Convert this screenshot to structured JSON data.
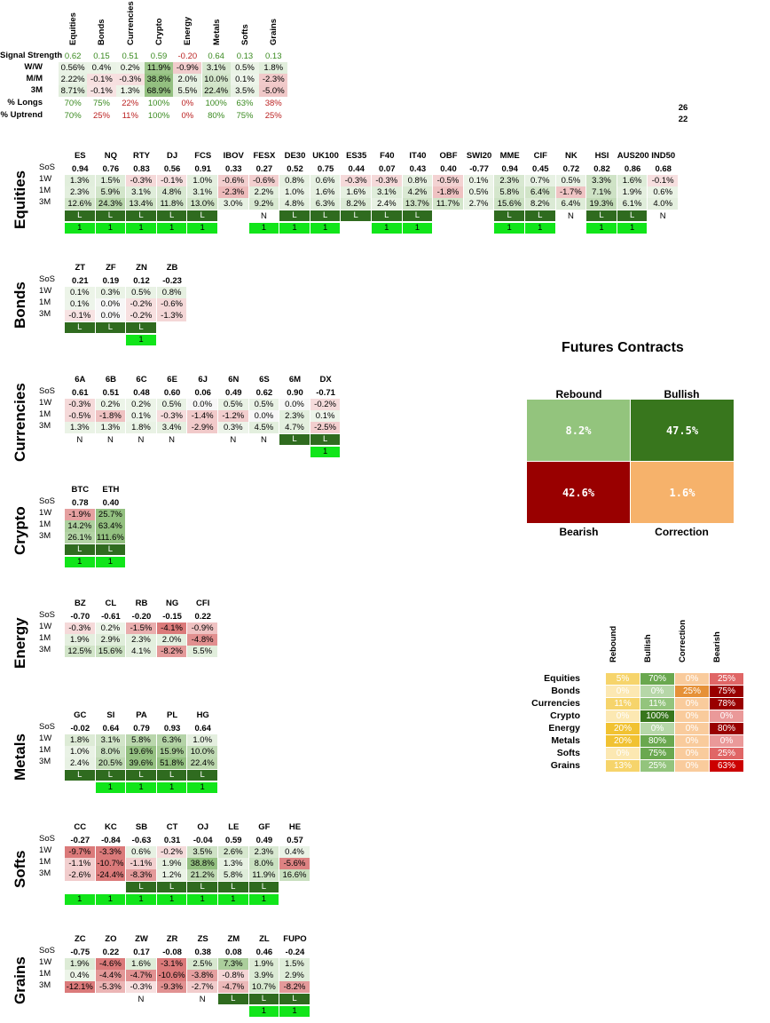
{
  "summary": {
    "columns": [
      "Equities",
      "Bonds",
      "Currencies",
      "Crypto",
      "Energy",
      "Metals",
      "Softs",
      "Grains"
    ],
    "rows": [
      {
        "label": "Signal Strength",
        "values": [
          "0.62",
          "0.15",
          "0.51",
          "0.59",
          "-0.20",
          "0.64",
          "0.13",
          "0.13"
        ]
      },
      {
        "label": "W/W",
        "values": [
          "0.56%",
          "0.4%",
          "0.2%",
          "11.9%",
          "-0.9%",
          "3.1%",
          "0.5%",
          "1.8%"
        ]
      },
      {
        "label": "M/M",
        "values": [
          "2.22%",
          "-0.1%",
          "-0.3%",
          "38.8%",
          "2.0%",
          "10.0%",
          "0.1%",
          "-2.3%"
        ]
      },
      {
        "label": "3M",
        "values": [
          "8.71%",
          "-0.1%",
          "1.3%",
          "68.9%",
          "5.5%",
          "22.4%",
          "3.5%",
          "-5.0%"
        ]
      },
      {
        "label": "% Longs",
        "values": [
          "70%",
          "75%",
          "22%",
          "100%",
          "0%",
          "100%",
          "63%",
          "38%"
        ]
      },
      {
        "label": "% Uptrend",
        "values": [
          "70%",
          "25%",
          "11%",
          "100%",
          "0%",
          "80%",
          "75%",
          "25%"
        ]
      }
    ],
    "side_numbers": [
      "26",
      "22"
    ]
  },
  "sections": [
    {
      "name": "Equities",
      "tickers": [
        "ES",
        "NQ",
        "RTY",
        "DJ",
        "FCS",
        "IBOV",
        "FESX",
        "DE30",
        "UK100",
        "ES35",
        "F40",
        "IT40",
        "OBF",
        "SWI20",
        "MME",
        "CIF",
        "NK",
        "HSI",
        "AUS200",
        "IND50"
      ],
      "sos": [
        "0.94",
        "0.76",
        "0.83",
        "0.56",
        "0.91",
        "0.33",
        "0.27",
        "0.52",
        "0.75",
        "0.44",
        "0.07",
        "0.43",
        "0.40",
        "-0.77",
        "0.94",
        "0.45",
        "0.72",
        "0.82",
        "0.86",
        "0.68"
      ],
      "w1": [
        "1.3%",
        "1.5%",
        "-0.3%",
        "-0.1%",
        "1.0%",
        "-0.6%",
        "-0.6%",
        "0.8%",
        "0.6%",
        "-0.3%",
        "-0.3%",
        "0.8%",
        "-0.5%",
        "0.1%",
        "2.3%",
        "0.7%",
        "0.5%",
        "3.3%",
        "1.6%",
        "-0.1%"
      ],
      "m1": [
        "2.3%",
        "5.9%",
        "3.1%",
        "4.8%",
        "3.1%",
        "-2.3%",
        "2.2%",
        "1.0%",
        "1.6%",
        "1.6%",
        "3.1%",
        "4.2%",
        "-1.8%",
        "0.5%",
        "5.8%",
        "6.4%",
        "-1.7%",
        "7.1%",
        "1.9%",
        "0.6%"
      ],
      "m3": [
        "12.6%",
        "24.3%",
        "13.4%",
        "11.8%",
        "13.0%",
        "3.0%",
        "9.2%",
        "4.8%",
        "6.3%",
        "8.2%",
        "2.4%",
        "13.7%",
        "11.7%",
        "2.7%",
        "15.6%",
        "8.2%",
        "6.4%",
        "19.3%",
        "6.1%",
        "4.0%"
      ],
      "ln": [
        "L",
        "L",
        "L",
        "L",
        "L",
        "",
        "N",
        "L",
        "L",
        "L",
        "L",
        "L",
        "",
        "",
        "L",
        "L",
        "N",
        "L",
        "L",
        "N"
      ],
      "one": [
        "1",
        "1",
        "1",
        "1",
        "1",
        "",
        "1",
        "1",
        "1",
        "",
        "1",
        "1",
        "",
        "",
        "1",
        "1",
        "",
        "1",
        "1",
        ""
      ]
    },
    {
      "name": "Bonds",
      "tickers": [
        "ZT",
        "ZF",
        "ZN",
        "ZB"
      ],
      "sos": [
        "0.21",
        "0.19",
        "0.12",
        "-0.23"
      ],
      "w1": [
        "0.1%",
        "0.3%",
        "0.5%",
        "0.8%"
      ],
      "m1": [
        "0.1%",
        "0.0%",
        "-0.2%",
        "-0.6%"
      ],
      "m3": [
        "-0.1%",
        "0.0%",
        "-0.2%",
        "-1.3%"
      ],
      "ln": [
        "L",
        "L",
        "L",
        ""
      ],
      "one": [
        "",
        "",
        "1",
        ""
      ]
    },
    {
      "name": "Currencies",
      "tickers": [
        "6A",
        "6B",
        "6C",
        "6E",
        "6J",
        "6N",
        "6S",
        "6M",
        "DX"
      ],
      "sos": [
        "0.61",
        "0.51",
        "0.48",
        "0.60",
        "0.06",
        "0.49",
        "0.62",
        "0.90",
        "-0.71"
      ],
      "w1": [
        "-0.3%",
        "0.2%",
        "0.2%",
        "0.5%",
        "0.0%",
        "0.5%",
        "0.5%",
        "0.0%",
        "-0.2%"
      ],
      "m1": [
        "-0.5%",
        "-1.8%",
        "0.1%",
        "-0.3%",
        "-1.4%",
        "-1.2%",
        "0.0%",
        "2.3%",
        "0.1%"
      ],
      "m3": [
        "1.3%",
        "1.3%",
        "1.8%",
        "3.4%",
        "-2.9%",
        "0.3%",
        "4.5%",
        "4.7%",
        "-2.5%"
      ],
      "ln": [
        "N",
        "N",
        "N",
        "N",
        "",
        "N",
        "N",
        "L",
        "L"
      ],
      "one": [
        "",
        "",
        "",
        "",
        "",
        "",
        "",
        "",
        "1"
      ]
    },
    {
      "name": "Crypto",
      "tickers": [
        "BTC",
        "ETH"
      ],
      "sos": [
        "0.78",
        "0.40"
      ],
      "w1": [
        "-1.9%",
        "25.7%"
      ],
      "m1": [
        "14.2%",
        "63.4%"
      ],
      "m3": [
        "26.1%",
        "111.6%"
      ],
      "ln": [
        "L",
        "L"
      ],
      "one": [
        "1",
        "1"
      ]
    },
    {
      "name": "Energy",
      "tickers": [
        "BZ",
        "CL",
        "RB",
        "NG",
        "CFI"
      ],
      "sos": [
        "-0.70",
        "-0.61",
        "-0.20",
        "-0.15",
        "0.22"
      ],
      "w1": [
        "-0.3%",
        "0.2%",
        "-1.5%",
        "-4.1%",
        "-0.9%"
      ],
      "m1": [
        "1.9%",
        "2.9%",
        "2.3%",
        "2.0%",
        "-4.8%"
      ],
      "m3": [
        "12.5%",
        "15.6%",
        "4.1%",
        "-8.2%",
        "5.5%"
      ],
      "ln": [
        "",
        "",
        "",
        "",
        ""
      ],
      "one": [
        "",
        "",
        "",
        "",
        ""
      ]
    },
    {
      "name": "Metals",
      "tickers": [
        "GC",
        "SI",
        "PA",
        "PL",
        "HG"
      ],
      "sos": [
        "-0.02",
        "0.64",
        "0.79",
        "0.93",
        "0.64"
      ],
      "w1": [
        "1.8%",
        "3.1%",
        "5.8%",
        "6.3%",
        "1.0%"
      ],
      "m1": [
        "1.0%",
        "8.0%",
        "19.6%",
        "15.9%",
        "10.0%"
      ],
      "m3": [
        "2.4%",
        "20.5%",
        "39.6%",
        "51.8%",
        "22.4%"
      ],
      "ln": [
        "L",
        "L",
        "L",
        "L",
        "L"
      ],
      "one": [
        "",
        "1",
        "1",
        "1",
        "1"
      ]
    },
    {
      "name": "Softs",
      "tickers": [
        "CC",
        "KC",
        "SB",
        "CT",
        "OJ",
        "LE",
        "GF",
        "HE"
      ],
      "sos": [
        "-0.27",
        "-0.84",
        "-0.63",
        "0.31",
        "-0.04",
        "0.59",
        "0.49",
        "0.57"
      ],
      "w1": [
        "-9.7%",
        "-3.3%",
        "0.6%",
        "-0.2%",
        "3.5%",
        "2.6%",
        "2.3%",
        "0.4%"
      ],
      "m1": [
        "-1.1%",
        "-10.7%",
        "-1.1%",
        "1.9%",
        "38.8%",
        "1.3%",
        "8.0%",
        "-5.6%"
      ],
      "m3": [
        "-2.6%",
        "-24.4%",
        "-8.3%",
        "1.2%",
        "21.2%",
        "5.8%",
        "11.9%",
        "16.6%"
      ],
      "ln": [
        "",
        "",
        "L",
        "L",
        "L",
        "L",
        "L",
        ""
      ],
      "one": [
        "1",
        "1",
        "1",
        "1",
        "1",
        "1",
        "1",
        ""
      ]
    },
    {
      "name": "Grains",
      "tickers": [
        "ZC",
        "ZO",
        "ZW",
        "ZR",
        "ZS",
        "ZM",
        "ZL",
        "FUPO"
      ],
      "sos": [
        "-0.75",
        "0.22",
        "0.17",
        "-0.08",
        "0.38",
        "0.08",
        "0.46",
        "-0.24"
      ],
      "w1": [
        "1.9%",
        "-4.6%",
        "1.6%",
        "-3.1%",
        "2.5%",
        "7.3%",
        "1.9%",
        "1.5%"
      ],
      "m1": [
        "0.4%",
        "-4.4%",
        "-4.7%",
        "-10.6%",
        "-3.8%",
        "-0.8%",
        "3.9%",
        "2.9%"
      ],
      "m3": [
        "-12.1%",
        "-5.3%",
        "-0.3%",
        "-9.3%",
        "-2.7%",
        "-4.7%",
        "10.7%",
        "-8.2%"
      ],
      "ln": [
        "",
        "",
        "N",
        "",
        "N",
        "L",
        "L",
        "L"
      ],
      "one": [
        "",
        "",
        "",
        "",
        "",
        "",
        "1",
        "1"
      ]
    }
  ],
  "row_labels": {
    "sos": "SoS",
    "w1": "1W",
    "m1": "1M",
    "m3": "3M"
  },
  "futures": {
    "title": "Futures Contracts",
    "rebound_label": "Rebound",
    "bullish_label": "Bullish",
    "bearish_label": "Bearish",
    "correction_label": "Correction",
    "rebound": "8.2%",
    "bullish": "47.5%",
    "bearish": "42.6%",
    "correction": "1.6%",
    "colors": {
      "rebound": "#93c47d",
      "bullish": "#38761d",
      "bearish": "#990000",
      "correction": "#f6b26b"
    }
  },
  "matrix": {
    "columns": [
      "Rebound",
      "Bullish",
      "Correction",
      "Bearish"
    ],
    "rows": [
      {
        "label": "Equities",
        "values": [
          "5%",
          "70%",
          "0%",
          "25%"
        ]
      },
      {
        "label": "Bonds",
        "values": [
          "0%",
          "0%",
          "25%",
          "75%"
        ]
      },
      {
        "label": "Currencies",
        "values": [
          "11%",
          "11%",
          "0%",
          "78%"
        ]
      },
      {
        "label": "Crypto",
        "values": [
          "0%",
          "100%",
          "0%",
          "0%"
        ]
      },
      {
        "label": "Energy",
        "values": [
          "20%",
          "0%",
          "0%",
          "80%"
        ]
      },
      {
        "label": "Metals",
        "values": [
          "20%",
          "80%",
          "0%",
          "0%"
        ]
      },
      {
        "label": "Softs",
        "values": [
          "0%",
          "75%",
          "0%",
          "25%"
        ]
      },
      {
        "label": "Grains",
        "values": [
          "13%",
          "25%",
          "0%",
          "63%"
        ]
      }
    ]
  }
}
